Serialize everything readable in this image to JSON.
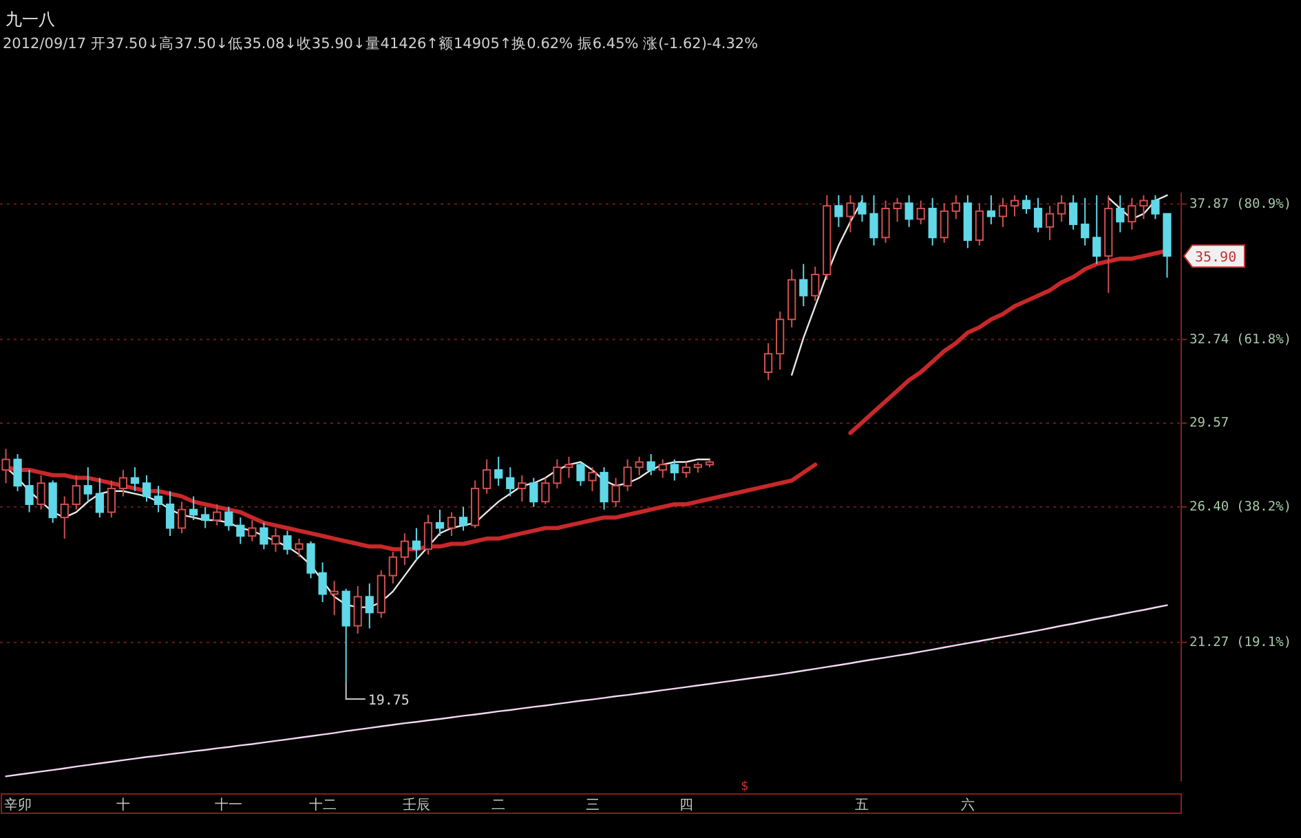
{
  "chart_data": {
    "type": "candlestick",
    "title": "九一八",
    "subtitle": "2012/09/17 开37.50↓高37.50↓低35.08↓收35.90↓量41426↑额14905↑换0.62% 振6.45% 涨(-1.62)-4.32%",
    "categories": [
      null,
      "辛卯",
      null,
      null,
      null,
      null,
      null,
      null,
      null,
      null,
      "十",
      null,
      null,
      null,
      null,
      null,
      null,
      null,
      null,
      "十一",
      null,
      null,
      null,
      null,
      null,
      null,
      null,
      "十二",
      null,
      null,
      null,
      null,
      null,
      null,
      null,
      "壬辰",
      null,
      null,
      null,
      null,
      null,
      null,
      "二",
      null,
      null,
      null,
      null,
      null,
      null,
      null,
      "三",
      null,
      null,
      null,
      null,
      null,
      null,
      null,
      "四",
      null,
      null,
      null,
      null,
      null,
      null,
      null,
      null,
      null,
      null,
      null,
      null,
      null,
      null,
      "五",
      null,
      null,
      null,
      null,
      null,
      null,
      null,
      null,
      "六",
      null,
      null,
      null,
      null,
      null,
      null,
      null,
      null,
      null,
      null,
      null,
      null,
      null,
      null,
      null,
      null,
      null
    ],
    "ohlc": [
      [
        27.8,
        28.6,
        27.3,
        28.2
      ],
      [
        28.2,
        28.4,
        27.0,
        27.2
      ],
      [
        27.2,
        27.8,
        26.2,
        26.5
      ],
      [
        26.5,
        27.6,
        26.3,
        27.3
      ],
      [
        27.3,
        27.4,
        25.8,
        26.0
      ],
      [
        26.0,
        26.8,
        25.2,
        26.5
      ],
      [
        26.5,
        27.6,
        26.3,
        27.2
      ],
      [
        27.2,
        27.9,
        26.6,
        26.9
      ],
      [
        26.9,
        27.5,
        26.0,
        26.2
      ],
      [
        26.2,
        27.4,
        26.0,
        27.1
      ],
      [
        27.1,
        27.8,
        26.8,
        27.5
      ],
      [
        27.5,
        27.9,
        27.0,
        27.3
      ],
      [
        27.3,
        27.6,
        26.6,
        26.8
      ],
      [
        26.8,
        27.2,
        26.2,
        26.5
      ],
      [
        26.5,
        27.0,
        25.3,
        25.6
      ],
      [
        25.6,
        26.6,
        25.4,
        26.3
      ],
      [
        26.3,
        26.8,
        25.9,
        26.1
      ],
      [
        26.1,
        26.4,
        25.6,
        25.9
      ],
      [
        25.9,
        26.5,
        25.7,
        26.2
      ],
      [
        26.2,
        26.4,
        25.5,
        25.7
      ],
      [
        25.7,
        26.0,
        25.0,
        25.3
      ],
      [
        25.3,
        25.9,
        25.1,
        25.6
      ],
      [
        25.6,
        25.8,
        24.8,
        25.0
      ],
      [
        25.0,
        25.6,
        24.7,
        25.3
      ],
      [
        25.3,
        25.5,
        24.6,
        24.8
      ],
      [
        24.8,
        25.2,
        24.5,
        25.0
      ],
      [
        25.0,
        25.1,
        23.7,
        23.9
      ],
      [
        23.9,
        24.3,
        22.8,
        23.1
      ],
      [
        23.1,
        23.6,
        22.3,
        23.2
      ],
      [
        23.2,
        23.3,
        19.75,
        21.9
      ],
      [
        21.9,
        23.4,
        21.6,
        23.0
      ],
      [
        23.0,
        23.5,
        21.8,
        22.4
      ],
      [
        22.4,
        24.0,
        22.2,
        23.8
      ],
      [
        23.8,
        24.7,
        23.5,
        24.5
      ],
      [
        24.5,
        25.4,
        24.2,
        25.1
      ],
      [
        25.1,
        25.6,
        24.4,
        24.8
      ],
      [
        24.8,
        26.1,
        24.6,
        25.8
      ],
      [
        25.8,
        26.3,
        25.3,
        25.6
      ],
      [
        25.6,
        26.2,
        25.3,
        26.0
      ],
      [
        26.0,
        26.4,
        25.5,
        25.7
      ],
      [
        25.7,
        27.4,
        25.6,
        27.1
      ],
      [
        27.1,
        28.2,
        26.9,
        27.8
      ],
      [
        27.8,
        28.3,
        27.2,
        27.5
      ],
      [
        27.5,
        27.9,
        26.8,
        27.1
      ],
      [
        27.1,
        27.6,
        26.6,
        27.3
      ],
      [
        27.3,
        27.5,
        26.4,
        26.6
      ],
      [
        26.6,
        27.5,
        26.5,
        27.3
      ],
      [
        27.3,
        28.2,
        27.1,
        27.9
      ],
      [
        27.9,
        28.3,
        27.5,
        28.0
      ],
      [
        28.0,
        28.1,
        27.2,
        27.4
      ],
      [
        27.4,
        27.9,
        27.0,
        27.7
      ],
      [
        27.7,
        27.9,
        26.3,
        26.6
      ],
      [
        26.6,
        27.5,
        26.4,
        27.2
      ],
      [
        27.2,
        28.2,
        27.0,
        27.9
      ],
      [
        27.9,
        28.3,
        27.6,
        28.1
      ],
      [
        28.1,
        28.4,
        27.6,
        27.8
      ],
      [
        27.8,
        28.2,
        27.5,
        28.0
      ],
      [
        28.0,
        28.2,
        27.4,
        27.7
      ],
      [
        27.7,
        28.1,
        27.5,
        27.9
      ],
      [
        27.9,
        28.1,
        27.7,
        28.0
      ],
      [
        28.0,
        28.2,
        27.9,
        28.1
      ],
      null,
      null,
      null,
      null,
      [
        31.5,
        32.6,
        31.2,
        32.2
      ],
      [
        32.2,
        33.8,
        31.6,
        33.5
      ],
      [
        33.5,
        35.4,
        33.2,
        35.0
      ],
      [
        35.0,
        35.6,
        34.0,
        34.4
      ],
      [
        34.4,
        35.5,
        34.2,
        35.2
      ],
      [
        35.2,
        38.2,
        35.0,
        37.8
      ],
      [
        37.8,
        38.2,
        37.0,
        37.4
      ],
      [
        37.4,
        38.2,
        36.8,
        37.9
      ],
      [
        37.9,
        38.2,
        37.2,
        37.5
      ],
      [
        37.5,
        38.2,
        36.3,
        36.6
      ],
      [
        36.6,
        38.0,
        36.4,
        37.7
      ],
      [
        37.7,
        38.1,
        37.2,
        37.9
      ],
      [
        37.9,
        38.2,
        37.0,
        37.3
      ],
      [
        37.3,
        38.0,
        37.1,
        37.7
      ],
      [
        37.7,
        38.1,
        36.3,
        36.6
      ],
      [
        36.6,
        37.9,
        36.4,
        37.6
      ],
      [
        37.6,
        38.2,
        37.3,
        37.9
      ],
      [
        37.9,
        38.2,
        36.2,
        36.5
      ],
      [
        36.5,
        37.9,
        36.3,
        37.6
      ],
      [
        37.6,
        38.2,
        37.1,
        37.4
      ],
      [
        37.4,
        38.1,
        37.0,
        37.8
      ],
      [
        37.8,
        38.2,
        37.4,
        38.0
      ],
      [
        38.0,
        38.2,
        37.5,
        37.7
      ],
      [
        37.7,
        38.1,
        36.8,
        37.0
      ],
      [
        37.0,
        37.8,
        36.5,
        37.5
      ],
      [
        37.5,
        38.2,
        37.2,
        37.9
      ],
      [
        37.9,
        38.2,
        36.9,
        37.1
      ],
      [
        37.1,
        38.1,
        36.3,
        36.6
      ],
      [
        36.6,
        38.2,
        35.6,
        35.9
      ],
      [
        35.9,
        38.2,
        34.5,
        37.7
      ],
      [
        37.7,
        38.2,
        36.8,
        37.2
      ],
      [
        37.2,
        38.1,
        36.9,
        37.8
      ],
      [
        37.8,
        38.2,
        37.3,
        38.0
      ],
      [
        38.0,
        38.2,
        37.3,
        37.5
      ],
      [
        37.5,
        37.5,
        35.08,
        35.9
      ]
    ],
    "series": [
      {
        "type": "line",
        "color": "#e8e8e8",
        "values": [
          27.9,
          27.5,
          27.0,
          26.6,
          26.2,
          26.0,
          26.2,
          26.6,
          26.9,
          27.0,
          27.0,
          26.9,
          26.8,
          26.6,
          26.3,
          26.1,
          26.0,
          25.9,
          25.9,
          25.8,
          25.6,
          25.5,
          25.3,
          25.1,
          24.9,
          24.6,
          24.2,
          23.6,
          23.0,
          22.7,
          22.6,
          22.6,
          22.8,
          23.2,
          23.8,
          24.4,
          24.9,
          25.4,
          25.6,
          25.7,
          25.8,
          26.2,
          26.6,
          26.9,
          27.2,
          27.3,
          27.5,
          27.8,
          28.0,
          28.1,
          27.8,
          27.4,
          27.2,
          27.3,
          27.5,
          27.8,
          28.0,
          28.1,
          28.1,
          28.2,
          28.2,
          null,
          null,
          null,
          null,
          null,
          null,
          31.4,
          32.8,
          34.0,
          35.2,
          36.3,
          37.2,
          38.0,
          null,
          null,
          null,
          null,
          null,
          null,
          null,
          null,
          null,
          null,
          null,
          null,
          null,
          null,
          null,
          null,
          null,
          null,
          null,
          null,
          38.1,
          37.7,
          37.3,
          37.5,
          38.0,
          38.2
        ]
      },
      {
        "type": "line",
        "color": "#c8282a",
        "values": [
          27.9,
          27.8,
          27.8,
          27.7,
          27.6,
          27.6,
          27.5,
          27.5,
          27.4,
          27.3,
          27.2,
          27.1,
          27.0,
          27.0,
          26.9,
          26.8,
          26.6,
          26.5,
          26.4,
          26.3,
          26.2,
          26.0,
          25.8,
          25.7,
          25.6,
          25.5,
          25.4,
          25.3,
          25.2,
          25.1,
          25.0,
          24.9,
          24.9,
          24.8,
          24.8,
          24.8,
          24.9,
          24.9,
          25.0,
          25.0,
          25.1,
          25.2,
          25.2,
          25.3,
          25.4,
          25.5,
          25.6,
          25.6,
          25.7,
          25.8,
          25.9,
          26.0,
          26.0,
          26.1,
          26.2,
          26.3,
          26.4,
          26.5,
          26.5,
          26.6,
          26.7,
          26.8,
          26.9,
          27.0,
          27.1,
          27.2,
          27.3,
          27.4,
          27.7,
          28.0,
          null,
          null,
          29.2,
          29.6,
          30.0,
          30.4,
          30.8,
          31.2,
          31.5,
          31.9,
          32.3,
          32.6,
          33.0,
          33.2,
          33.5,
          33.7,
          34.0,
          34.2,
          34.4,
          34.6,
          34.9,
          35.1,
          35.4,
          35.6,
          35.7,
          35.8,
          35.8,
          35.9,
          36.0,
          36.1
        ]
      },
      {
        "type": "line",
        "color": "#f4d8f4",
        "values": [
          16.2,
          16.26,
          16.32,
          16.38,
          16.44,
          16.5,
          16.57,
          16.63,
          16.69,
          16.75,
          16.81,
          16.87,
          16.93,
          16.98,
          17.04,
          17.09,
          17.15,
          17.2,
          17.26,
          17.31,
          17.37,
          17.42,
          17.48,
          17.54,
          17.6,
          17.66,
          17.72,
          17.78,
          17.84,
          17.91,
          17.97,
          18.03,
          18.09,
          18.15,
          18.21,
          18.26,
          18.32,
          18.37,
          18.43,
          18.49,
          18.54,
          18.6,
          18.66,
          18.71,
          18.77,
          18.83,
          18.88,
          18.94,
          19.0,
          19.06,
          19.11,
          19.17,
          19.23,
          19.28,
          19.34,
          19.4,
          19.46,
          19.52,
          19.58,
          19.64,
          19.7,
          19.76,
          19.82,
          19.88,
          19.94,
          20.0,
          20.06,
          20.13,
          20.2,
          20.27,
          20.34,
          20.41,
          20.48,
          20.56,
          20.63,
          20.7,
          20.77,
          20.84,
          20.92,
          21.0,
          21.08,
          21.16,
          21.24,
          21.32,
          21.4,
          21.48,
          21.56,
          21.64,
          21.72,
          21.81,
          21.9,
          21.98,
          22.07,
          22.16,
          22.24,
          22.33,
          22.42,
          22.5,
          22.59,
          22.68
        ]
      }
    ],
    "ylim": [
      16.0,
      38.3
    ],
    "yticks": [
      37.87,
      32.74,
      29.57,
      {
        "value": 26.4,
        "label": "26.40"
      },
      21.27
    ],
    "grid": "y",
    "y2lim": [
      -0.52,
      82.5
    ],
    "y2ticks": [
      {
        "value": 80.9,
        "label": "(80.9%)"
      },
      {
        "value": 61.8,
        "label": "(61.8%)"
      },
      {
        "value": 38.2,
        "label": "(38.2%)"
      },
      {
        "value": 19.1,
        "label": "(19.1%)"
      }
    ],
    "annotations": [
      "19.75",
      "35.90",
      "$"
    ]
  }
}
